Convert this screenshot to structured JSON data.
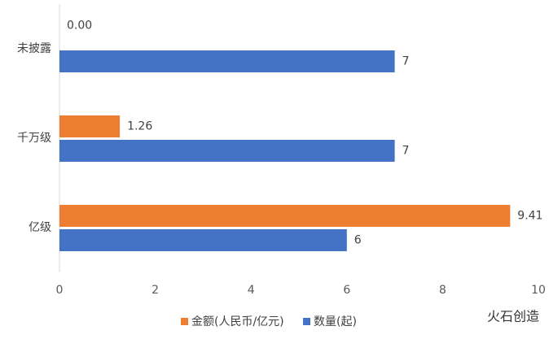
{
  "chart_data": {
    "type": "bar",
    "orientation": "horizontal",
    "categories": [
      "未披露",
      "千万级",
      "亿级"
    ],
    "series": [
      {
        "name": "金额(人民币/亿元)",
        "color": "#ed7d31",
        "values": [
          0,
          1.26,
          9.41
        ],
        "value_labels": [
          "0.00",
          "1.26",
          "9.41"
        ]
      },
      {
        "name": "数量(起)",
        "color": "#4472c4",
        "values": [
          7,
          7,
          6
        ]
      }
    ],
    "xlim": [
      0,
      10
    ],
    "xticks": [
      0,
      2,
      4,
      6,
      8,
      10
    ],
    "grid": false,
    "legend": "bottom",
    "brand": "火石创造"
  }
}
